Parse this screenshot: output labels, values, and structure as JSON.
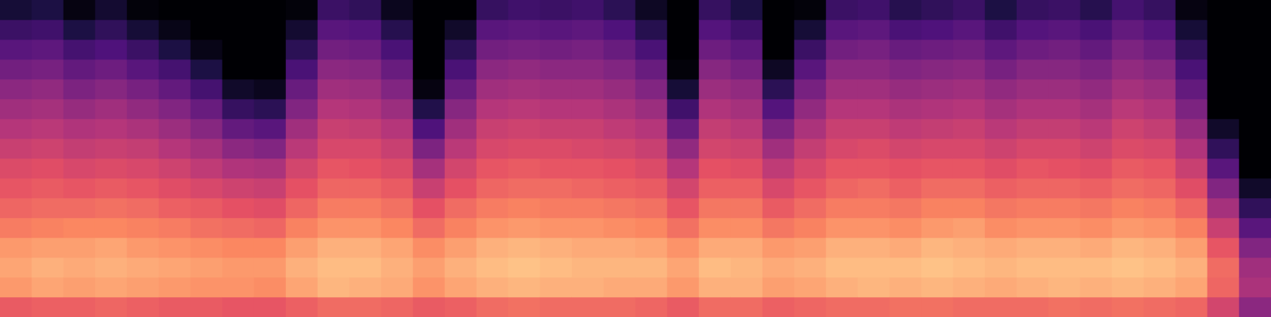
{
  "chart_data": {
    "type": "heatmap",
    "tick_labels": false,
    "zlim": [
      -80,
      0
    ],
    "cells": [
      [
        -28,
        -17,
        -15,
        -17,
        -22,
        -26,
        -29,
        -32,
        -36,
        -40,
        -44,
        -48,
        -53,
        -58,
        -64,
        -72
      ],
      [
        -27,
        -15,
        -13,
        -16,
        -21,
        -25,
        -28,
        -31,
        -35,
        -39,
        -43,
        -47,
        -52,
        -57,
        -63,
        -70
      ],
      [
        -27,
        -16,
        -14,
        -16,
        -20,
        -25,
        -29,
        -33,
        -37,
        -41,
        -46,
        -51,
        -56,
        -62,
        -70,
        -78
      ],
      [
        -26,
        -15,
        -13,
        -15,
        -20,
        -24,
        -28,
        -32,
        -36,
        -40,
        -44,
        -49,
        -54,
        -60,
        -66,
        -73
      ],
      [
        -27,
        -16,
        -14,
        -17,
        -21,
        -25,
        -29,
        -33,
        -37,
        -42,
        -47,
        -52,
        -58,
        -64,
        -72,
        -79
      ],
      [
        -28,
        -17,
        -15,
        -18,
        -22,
        -27,
        -31,
        -35,
        -40,
        -45,
        -50,
        -56,
        -62,
        -70,
        -77,
        -80
      ],
      [
        -28,
        -18,
        -16,
        -19,
        -24,
        -28,
        -33,
        -38,
        -43,
        -49,
        -55,
        -62,
        -70,
        -77,
        -80,
        -80
      ],
      [
        -29,
        -18,
        -17,
        -20,
        -25,
        -30,
        -35,
        -41,
        -48,
        -56,
        -65,
        -74,
        -80,
        -80,
        -80,
        -80
      ],
      [
        -29,
        -19,
        -17,
        -20,
        -26,
        -31,
        -36,
        -42,
        -50,
        -58,
        -67,
        -76,
        -80,
        -80,
        -80,
        -80
      ],
      [
        -27,
        -15,
        -13,
        -16,
        -21,
        -26,
        -30,
        -34,
        -39,
        -44,
        -50,
        -55,
        -61,
        -67,
        -73,
        -79
      ],
      [
        -25,
        -12,
        -11,
        -13,
        -18,
        -22,
        -26,
        -29,
        -33,
        -36,
        -40,
        -44,
        -48,
        -53,
        -58,
        -64
      ],
      [
        -25,
        -13,
        -11,
        -13,
        -18,
        -22,
        -26,
        -30,
        -33,
        -37,
        -41,
        -45,
        -49,
        -54,
        -59,
        -66
      ],
      [
        -26,
        -14,
        -13,
        -15,
        -20,
        -24,
        -28,
        -32,
        -36,
        -40,
        -45,
        -50,
        -55,
        -61,
        -68,
        -76
      ],
      [
        -28,
        -18,
        -16,
        -19,
        -25,
        -30,
        -36,
        -43,
        -51,
        -60,
        -69,
        -78,
        -80,
        -80,
        -80,
        -80
      ],
      [
        -27,
        -15,
        -13,
        -16,
        -21,
        -25,
        -30,
        -34,
        -39,
        -44,
        -49,
        -55,
        -61,
        -67,
        -74,
        -80
      ],
      [
        -25,
        -13,
        -11,
        -13,
        -18,
        -22,
        -26,
        -29,
        -33,
        -36,
        -40,
        -44,
        -48,
        -53,
        -58,
        -65
      ],
      [
        -24,
        -12,
        -10,
        -12,
        -17,
        -21,
        -25,
        -28,
        -32,
        -35,
        -39,
        -43,
        -47,
        -52,
        -57,
        -63
      ],
      [
        -25,
        -13,
        -11,
        -13,
        -18,
        -22,
        -25,
        -29,
        -32,
        -36,
        -40,
        -44,
        -48,
        -53,
        -58,
        -64
      ],
      [
        -25,
        -13,
        -12,
        -14,
        -18,
        -22,
        -26,
        -29,
        -33,
        -36,
        -40,
        -44,
        -48,
        -52,
        -57,
        -63
      ],
      [
        -25,
        -14,
        -12,
        -14,
        -19,
        -23,
        -27,
        -30,
        -34,
        -38,
        -42,
        -46,
        -50,
        -55,
        -60,
        -67
      ],
      [
        -26,
        -14,
        -12,
        -15,
        -20,
        -24,
        -28,
        -32,
        -36,
        -40,
        -45,
        -50,
        -55,
        -61,
        -68,
        -75
      ],
      [
        -28,
        -17,
        -15,
        -18,
        -24,
        -29,
        -34,
        -40,
        -47,
        -55,
        -63,
        -72,
        -79,
        -80,
        -80,
        -80
      ],
      [
        -25,
        -13,
        -11,
        -14,
        -19,
        -23,
        -27,
        -30,
        -34,
        -37,
        -41,
        -45,
        -49,
        -54,
        -59,
        -65
      ],
      [
        -25,
        -13,
        -12,
        -14,
        -19,
        -23,
        -27,
        -31,
        -35,
        -39,
        -43,
        -47,
        -52,
        -57,
        -63,
        -70
      ],
      [
        -27,
        -16,
        -14,
        -17,
        -23,
        -28,
        -33,
        -38,
        -44,
        -51,
        -59,
        -67,
        -75,
        -80,
        -80,
        -80
      ],
      [
        -26,
        -15,
        -13,
        -16,
        -21,
        -25,
        -29,
        -33,
        -37,
        -42,
        -47,
        -52,
        -58,
        -64,
        -72,
        -79
      ],
      [
        -25,
        -13,
        -11,
        -13,
        -18,
        -22,
        -26,
        -29,
        -33,
        -36,
        -40,
        -44,
        -48,
        -53,
        -58,
        -64
      ],
      [
        -25,
        -12,
        -11,
        -13,
        -18,
        -22,
        -25,
        -29,
        -32,
        -36,
        -40,
        -44,
        -48,
        -52,
        -57,
        -63
      ],
      [
        -24,
        -13,
        -11,
        -14,
        -19,
        -23,
        -27,
        -30,
        -34,
        -38,
        -42,
        -46,
        -50,
        -55,
        -61,
        -68
      ],
      [
        -24,
        -12,
        -10,
        -12,
        -17,
        -21,
        -25,
        -29,
        -33,
        -37,
        -41,
        -45,
        -49,
        -54,
        -60,
        -66
      ],
      [
        -25,
        -13,
        -11,
        -13,
        -16,
        -21,
        -25,
        -29,
        -33,
        -36,
        -40,
        -44,
        -48,
        -53,
        -58,
        -64
      ],
      [
        -25,
        -14,
        -12,
        -14,
        -19,
        -23,
        -27,
        -31,
        -35,
        -39,
        -43,
        -47,
        -52,
        -57,
        -63,
        -70
      ],
      [
        -25,
        -13,
        -11,
        -13,
        -18,
        -22,
        -26,
        -29,
        -33,
        -37,
        -41,
        -45,
        -49,
        -54,
        -59,
        -65
      ],
      [
        -24,
        -12,
        -11,
        -13,
        -18,
        -22,
        -26,
        -30,
        -33,
        -37,
        -41,
        -45,
        -49,
        -53,
        -58,
        -64
      ],
      [
        -25,
        -13,
        -11,
        -14,
        -19,
        -23,
        -27,
        -31,
        -35,
        -39,
        -43,
        -47,
        -51,
        -56,
        -61,
        -68
      ],
      [
        -24,
        -12,
        -10,
        -12,
        -17,
        -21,
        -25,
        -28,
        -32,
        -35,
        -39,
        -43,
        -47,
        -51,
        -56,
        -62
      ],
      [
        -25,
        -13,
        -11,
        -13,
        -18,
        -22,
        -26,
        -29,
        -33,
        -37,
        -41,
        -45,
        -49,
        -54,
        -59,
        -65
      ],
      [
        -26,
        -15,
        -13,
        -16,
        -21,
        -26,
        -31,
        -36,
        -41,
        -46,
        -51,
        -56,
        -61,
        -66,
        -72,
        -78
      ],
      [
        -34,
        -26,
        -25,
        -29,
        -36,
        -43,
        -50,
        -58,
        -66,
        -74,
        -80,
        -80,
        -80,
        -80,
        -80,
        -80
      ],
      [
        -48,
        -42,
        -44,
        -50,
        -58,
        -66,
        -74,
        -80,
        -80,
        -80,
        -80,
        -80,
        -80,
        -80,
        -80,
        -80
      ]
    ]
  }
}
